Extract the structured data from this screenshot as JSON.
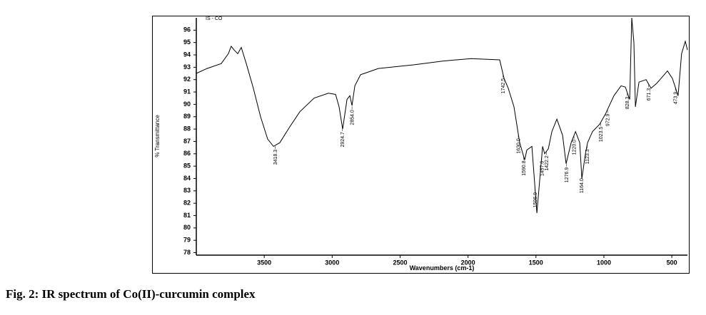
{
  "chart_data": {
    "type": "line",
    "tag": "IS - CO",
    "x_label": "Wavenumbers (cm-1)",
    "y_label": "% Transmittance",
    "caption": "Fig. 2: IR spectrum of Co(II)-curcumin complex",
    "xlim": [
      4000,
      385
    ],
    "ylim": [
      77.8,
      97.0
    ],
    "xticks": [
      3500,
      3000,
      2500,
      2000,
      1500,
      1000,
      500
    ],
    "yticks": [
      78,
      79,
      80,
      81,
      82,
      83,
      84,
      85,
      86,
      87,
      88,
      89,
      90,
      91,
      92,
      93,
      94,
      95,
      96
    ],
    "x": [
      4000,
      3921,
      3816,
      3764,
      3743,
      3722,
      3695,
      3669,
      3632,
      3580,
      3527,
      3475,
      3432,
      3385,
      3317,
      3238,
      3133,
      3028,
      2975,
      2949,
      2923,
      2891,
      2870,
      2854,
      2833,
      2791,
      2660,
      2397,
      2187,
      1977,
      1767,
      1735,
      1704,
      1662,
      1620,
      1583,
      1567,
      1530,
      1493,
      1467,
      1451,
      1436,
      1409,
      1383,
      1346,
      1304,
      1278,
      1241,
      1209,
      1178,
      1162,
      1136,
      1120,
      1084,
      1031,
      989,
      926,
      873,
      842,
      810,
      795,
      779,
      768,
      742,
      689,
      653,
      611,
      532,
      496,
      454,
      428,
      401,
      385
    ],
    "series": [
      {
        "name": "IS - CO",
        "color": "#000000",
        "values": [
          92.5,
          92.9,
          93.3,
          94.1,
          94.7,
          94.4,
          94.1,
          94.6,
          93.3,
          91.3,
          89.0,
          87.2,
          86.6,
          86.9,
          88.1,
          89.4,
          90.5,
          90.9,
          90.8,
          89.8,
          88.0,
          90.4,
          90.7,
          89.9,
          91.5,
          92.4,
          92.9,
          93.2,
          93.5,
          93.7,
          93.6,
          92.1,
          91.3,
          89.8,
          86.9,
          85.5,
          86.3,
          86.6,
          81.2,
          84.6,
          86.6,
          86.0,
          86.4,
          87.8,
          88.8,
          87.5,
          85.2,
          86.9,
          87.8,
          86.9,
          84.0,
          86.0,
          86.9,
          87.8,
          88.4,
          89.2,
          90.7,
          91.5,
          91.4,
          90.4,
          97.0,
          95.0,
          89.8,
          91.8,
          92.0,
          91.3,
          91.7,
          92.7,
          92.1,
          90.7,
          94.1,
          95.1,
          94.4
        ]
      }
    ],
    "annotations": [
      {
        "x": 3418.3,
        "label": "3418.3"
      },
      {
        "x": 2924.7,
        "label": "2924.7"
      },
      {
        "x": 2854.0,
        "label": "2854.0"
      },
      {
        "x": 1742.5,
        "label": "1742.5"
      },
      {
        "x": 1630.0,
        "label": "1630.0"
      },
      {
        "x": 1590.8,
        "label": "1590.8"
      },
      {
        "x": 1506.9,
        "label": "1506.9"
      },
      {
        "x": 1457.6,
        "label": "1457.6"
      },
      {
        "x": 1422.2,
        "label": "1422.2"
      },
      {
        "x": 1276.9,
        "label": "1276.9"
      },
      {
        "x": 1220.0,
        "label": "1220.0"
      },
      {
        "x": 1164.0,
        "label": "1164.0"
      },
      {
        "x": 1123.3,
        "label": "1123.3"
      },
      {
        "x": 1023.5,
        "label": "1023.5"
      },
      {
        "x": 972.9,
        "label": "972.9"
      },
      {
        "x": 828.3,
        "label": "828.3"
      },
      {
        "x": 671.3,
        "label": "671.3"
      },
      {
        "x": 473.9,
        "label": "473.9"
      }
    ]
  }
}
